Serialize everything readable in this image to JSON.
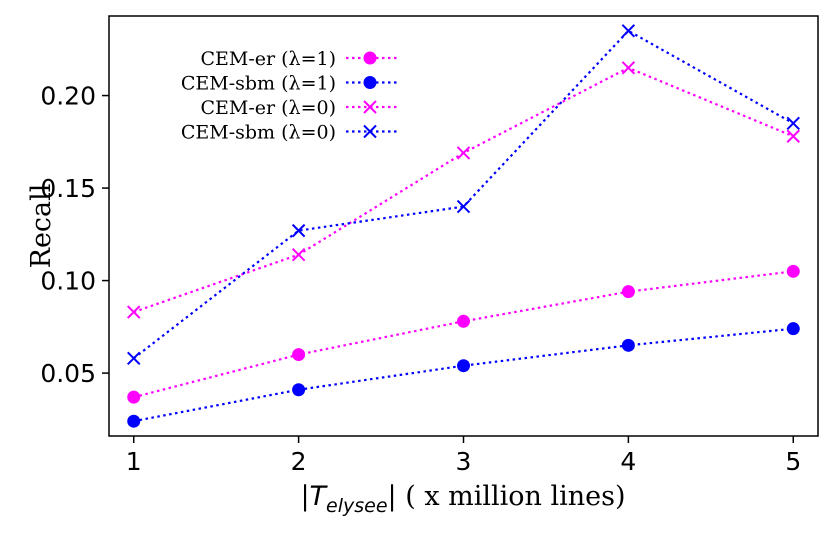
{
  "chart_data": {
    "type": "line",
    "xlabel_prefix": "|",
    "xlabel_symbol": "T",
    "xlabel_subscript": "elysee",
    "xlabel_suffix": "| ( x million lines)",
    "ylabel": "Recall",
    "x": [
      1,
      2,
      3,
      4,
      5
    ],
    "x_ticks": [
      "1",
      "2",
      "3",
      "4",
      "5"
    ],
    "y_ticks": [
      "0.05",
      "0.10",
      "0.15",
      "0.20"
    ],
    "xlim": [
      0.85,
      5.15
    ],
    "ylim": [
      0.016,
      0.243
    ],
    "grid": false,
    "legend_position": "top-left",
    "series": [
      {
        "name": "CEM-er (λ=1)",
        "color": "#ff00ff",
        "marker": "circle",
        "linestyle": "dotted",
        "values": [
          0.037,
          0.06,
          0.078,
          0.094,
          0.105
        ]
      },
      {
        "name": "CEM-sbm (λ=1)",
        "color": "#0000ff",
        "marker": "circle",
        "linestyle": "dotted",
        "values": [
          0.024,
          0.041,
          0.054,
          0.065,
          0.074
        ]
      },
      {
        "name": "CEM-er (λ=0)",
        "color": "#ff00ff",
        "marker": "x",
        "linestyle": "dotted",
        "values": [
          0.083,
          0.114,
          0.169,
          0.215,
          0.178
        ]
      },
      {
        "name": "CEM-sbm (λ=0)",
        "color": "#0000ff",
        "marker": "x",
        "linestyle": "dotted",
        "values": [
          0.058,
          0.127,
          0.14,
          0.235,
          0.185
        ]
      }
    ]
  }
}
